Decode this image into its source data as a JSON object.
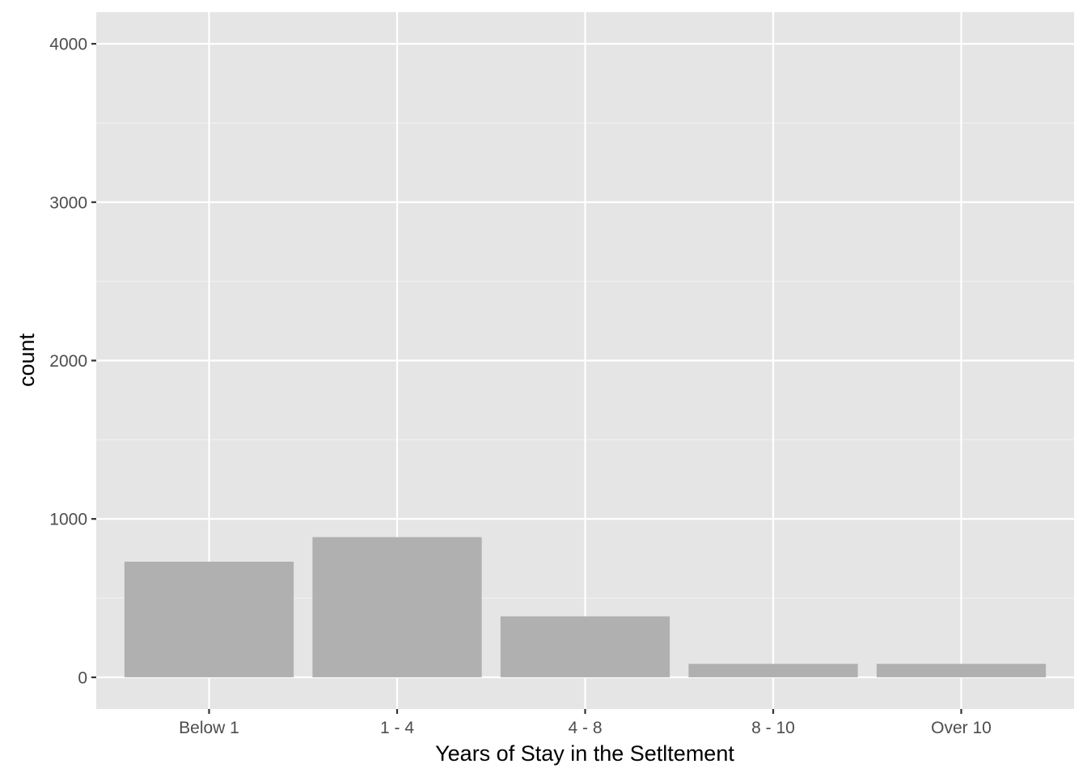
{
  "chart_data": {
    "type": "bar",
    "categories": [
      "Below 1",
      "1 - 4",
      "4 - 8",
      "8 - 10",
      "Over 10"
    ],
    "values": [
      730,
      885,
      385,
      85,
      85
    ],
    "xlabel": "Years of Stay in the Setltement",
    "ylabel": "count",
    "ylim": [
      -200,
      4200
    ],
    "yticks": [
      0,
      1000,
      2000,
      3000,
      4000
    ],
    "ytick_labels": [
      "0",
      "1000",
      "2000",
      "3000",
      "4000"
    ],
    "grid": true,
    "legend": "none",
    "colors": {
      "panel_background": "#e5e5e5",
      "grid_major": "#ffffff",
      "grid_minor": "#f2f2f2",
      "bar_fill": "#b0b0b0",
      "tick_label": "#4d4d4d",
      "axis_title": "#000000"
    }
  }
}
